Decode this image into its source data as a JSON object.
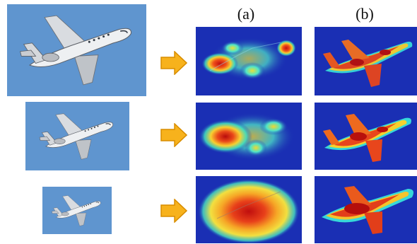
{
  "columns": {
    "a_label": "(a)",
    "b_label": "(b)"
  },
  "colors": {
    "sky": "#5f95cf",
    "arrow_fill": "#f7b21c",
    "arrow_stroke": "#d88d00",
    "heat_background": "#1a2fb4"
  },
  "rows": [
    {
      "scale": "large"
    },
    {
      "scale": "medium"
    },
    {
      "scale": "small"
    }
  ]
}
